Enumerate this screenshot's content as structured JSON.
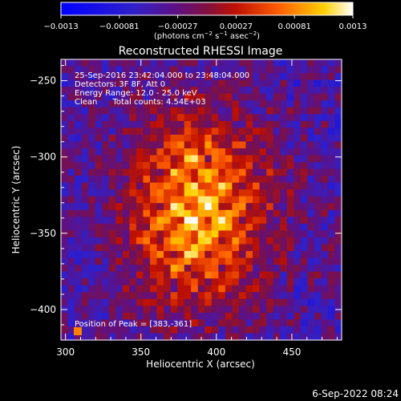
{
  "chart_data": {
    "type": "heatmap",
    "title": "Reconstructed RHESSI Image",
    "xlabel": "Heliocentric X (arcsec)",
    "ylabel": "Heliocentric Y (arcsec)",
    "xlim": [
      297,
      483
    ],
    "ylim": [
      -420,
      -236
    ],
    "x_ticks": [
      300,
      350,
      400,
      450
    ],
    "y_ticks": [
      -250,
      -300,
      -350,
      -400
    ],
    "x_tick_labels": [
      "300",
      "350",
      "400",
      "450"
    ],
    "y_tick_labels": [
      "−250",
      "−300",
      "−350",
      "−400"
    ],
    "colorbar": {
      "range": [
        -0.0013,
        0.0013
      ],
      "tick_labels": [
        "−0.0013",
        "−0.00081",
        "−0.00027",
        "0.00027",
        "0.00081",
        "0.0013"
      ],
      "unit_main": "(photons cm",
      "unit_sup1": "−2",
      "unit_mid1": " s",
      "unit_sup2": "−1",
      "unit_mid2": " asec",
      "unit_sup3": "−2",
      "unit_end": ")"
    },
    "annotations": [
      "25-Sep-2016 23:42:04.000 to 23:48:04.000",
      "Detectors: 3F 8F, Att 0",
      "Energy Range: 12.0 - 25.0 keV",
      "Clean      Total counts: 4.54E+03"
    ],
    "peak_label": "Position of Peak = [383,-361]",
    "peak_position": [
      383,
      -361
    ],
    "source_center": [
      388,
      -335
    ],
    "image_grid": {
      "nx": 41,
      "ny": 41
    }
  },
  "footer": {
    "timestamp": "6-Sep-2022 08:24"
  }
}
